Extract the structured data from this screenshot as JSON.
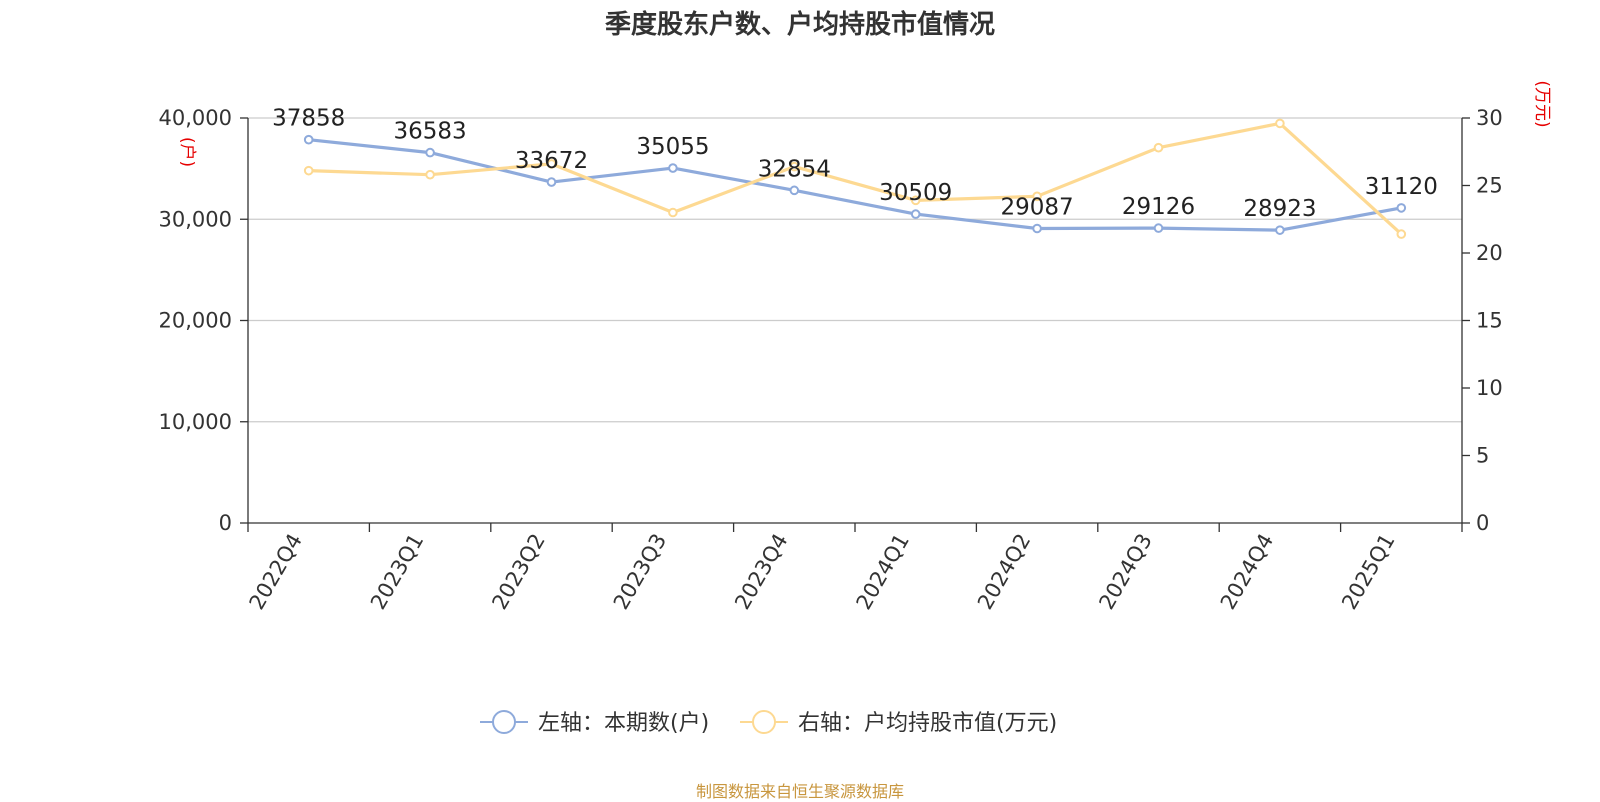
{
  "title": "季度股东户数、户均持股市值情况",
  "source": "制图数据来自恒生聚源数据库",
  "chart_data": {
    "type": "line",
    "categories": [
      "2022Q4",
      "2023Q1",
      "2023Q2",
      "2023Q3",
      "2023Q4",
      "2024Q1",
      "2024Q2",
      "2024Q3",
      "2024Q4",
      "2025Q1"
    ],
    "left_axis": {
      "unit_label": "(户)",
      "ylim": [
        0,
        40000
      ],
      "ticks": [
        "0",
        "10,000",
        "20,000",
        "30,000",
        "40,000"
      ]
    },
    "right_axis": {
      "unit_label": "(万元)",
      "ylim": [
        0,
        30
      ],
      "ticks": [
        "0",
        "5",
        "10",
        "15",
        "20",
        "25",
        "30"
      ]
    },
    "series": [
      {
        "name": "左轴：本期数(户)",
        "axis": "left",
        "color": "#8eaadb",
        "values": [
          37858,
          36583,
          33672,
          35055,
          32854,
          30509,
          29087,
          29126,
          28923,
          31120
        ],
        "labels": [
          "37858",
          "36583",
          "33672",
          "35055",
          "32854",
          "30509",
          "29087",
          "29126",
          "28923",
          "31120"
        ]
      },
      {
        "name": "右轴：户均持股市值(万元)",
        "axis": "right",
        "color": "#fdd992",
        "values": [
          26.1,
          25.8,
          26.6,
          23.0,
          26.4,
          23.9,
          24.2,
          27.8,
          29.6,
          21.4
        ]
      }
    ],
    "grid": true,
    "legend_position": "bottom"
  }
}
